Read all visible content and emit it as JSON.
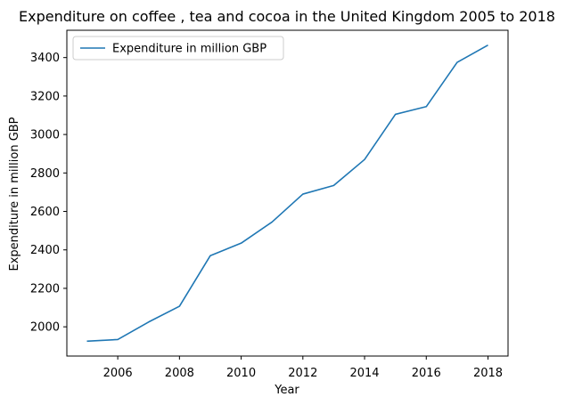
{
  "chart_data": {
    "type": "line",
    "title": "Expenditure on coffee , tea and cocoa in the United Kingdom 2005 to 2018",
    "xlabel": "Year",
    "ylabel": "Expenditure in million GBP",
    "x": [
      2005,
      2006,
      2007,
      2008,
      2009,
      2010,
      2011,
      2012,
      2013,
      2014,
      2015,
      2016,
      2017,
      2018
    ],
    "series": [
      {
        "name": "Expenditure in million GBP",
        "color": "#1f77b4",
        "values": [
          1925,
          1934,
          2025,
          2107,
          2370,
          2435,
          2545,
          2690,
          2735,
          2870,
          3105,
          3145,
          3375,
          3465
        ]
      }
    ],
    "xticks": [
      "2006",
      "2008",
      "2010",
      "2012",
      "2014",
      "2016",
      "2018"
    ],
    "yticks": [
      "2000",
      "2200",
      "2400",
      "2600",
      "2800",
      "3000",
      "3200",
      "3400"
    ],
    "xlim": [
      2004.35,
      2018.65
    ],
    "ylim": [
      1848,
      3542
    ],
    "grid": false,
    "legend": "top-left"
  }
}
